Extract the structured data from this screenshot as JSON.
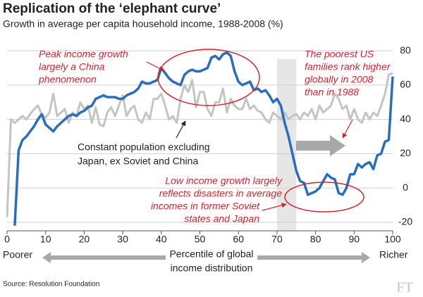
{
  "chart_data": {
    "type": "line",
    "title": "Replication of the ‘elephant curve’",
    "subtitle": "Growth in average per capita household income, 1988-2008 (%)",
    "x": [
      0,
      1,
      2,
      3,
      4,
      5,
      6,
      7,
      8,
      9,
      10,
      11,
      12,
      13,
      14,
      15,
      16,
      17,
      18,
      19,
      20,
      21,
      22,
      23,
      24,
      25,
      26,
      27,
      28,
      29,
      30,
      31,
      32,
      33,
      34,
      35,
      36,
      37,
      38,
      39,
      40,
      41,
      42,
      43,
      44,
      45,
      46,
      47,
      48,
      49,
      50,
      51,
      52,
      53,
      54,
      55,
      56,
      57,
      58,
      59,
      60,
      61,
      62,
      63,
      64,
      65,
      66,
      67,
      68,
      69,
      70,
      71,
      72,
      73,
      74,
      75,
      76,
      77,
      78,
      79,
      80,
      81,
      82,
      83,
      84,
      85,
      86,
      87,
      88,
      89,
      90,
      91,
      92,
      93,
      94,
      95,
      96,
      97,
      98,
      99,
      100
    ],
    "series": [
      {
        "color": "#c4c4c4",
        "values": [
          -17,
          40,
          38,
          40,
          42,
          40,
          43,
          46,
          48,
          43,
          41,
          44,
          55,
          42,
          44,
          46,
          38,
          44,
          42,
          50,
          46,
          48,
          38,
          47,
          37,
          36,
          44,
          47,
          42,
          48,
          54,
          42,
          46,
          48,
          40,
          38,
          44,
          40,
          52,
          52,
          55,
          48,
          40,
          42,
          38,
          52,
          60,
          56,
          63,
          47,
          56,
          56,
          46,
          42,
          50,
          50,
          58,
          44,
          52,
          48,
          46,
          46,
          52,
          46,
          48,
          45,
          44,
          40,
          38,
          44,
          42,
          40,
          44,
          40,
          42,
          43,
          40,
          44,
          42,
          46,
          40,
          48,
          44,
          46,
          48,
          55,
          52,
          46,
          48,
          40,
          46,
          40,
          38,
          44,
          40,
          44,
          42,
          48,
          55,
          66,
          67
        ]
      },
      {
        "color": "#2a6ebb",
        "values": [
          null,
          null,
          -22,
          22,
          28,
          30,
          33,
          36,
          40,
          43,
          37,
          35,
          33,
          36,
          38,
          40,
          42,
          43,
          42,
          44,
          45,
          47,
          48,
          52,
          53,
          54,
          53,
          53,
          53,
          52,
          52,
          54,
          55,
          56,
          58,
          62,
          61,
          61,
          62,
          63,
          70,
          67,
          64,
          62,
          61,
          60,
          66,
          68,
          69,
          68,
          68,
          69,
          70,
          76,
          77,
          75,
          78,
          79,
          77,
          68,
          62,
          60,
          61,
          62,
          57,
          58,
          56,
          57,
          54,
          50,
          52,
          48,
          38,
          30,
          20,
          10,
          4,
          3,
          -4,
          -3,
          -2,
          0,
          4,
          8,
          6,
          5,
          -3,
          -4,
          0,
          8,
          8,
          14,
          12,
          14,
          15,
          11,
          19,
          20,
          27,
          28,
          65
        ]
      }
    ],
    "xlim": [
      0,
      100
    ],
    "xticks": [
      0,
      10,
      20,
      30,
      40,
      50,
      60,
      70,
      80,
      90,
      100
    ],
    "ylim": [
      -25,
      85
    ],
    "yticks": [
      -20,
      0,
      20,
      40,
      60,
      80
    ],
    "grid": true,
    "shaded_region": [
      70,
      75
    ],
    "annotations": [
      [
        "Peak income growth",
        "largely a China",
        "phenomenon"
      ],
      [
        "The poorest US",
        "families rank higher",
        "globally in 2008",
        "than in 1988"
      ],
      [
        "Constant population excluding",
        "Japan, ex Soviet and China"
      ],
      [
        "Low income growth largely",
        "reflects disasters in average",
        "incomes in former Soviet",
        "states and Japan"
      ]
    ],
    "x_label_left": "Poorer",
    "x_label": [
      "Percentile of global",
      "income distribution"
    ],
    "x_label_right": "Richer",
    "source": "Source: Resolution Foundation",
    "logo": "FT"
  }
}
